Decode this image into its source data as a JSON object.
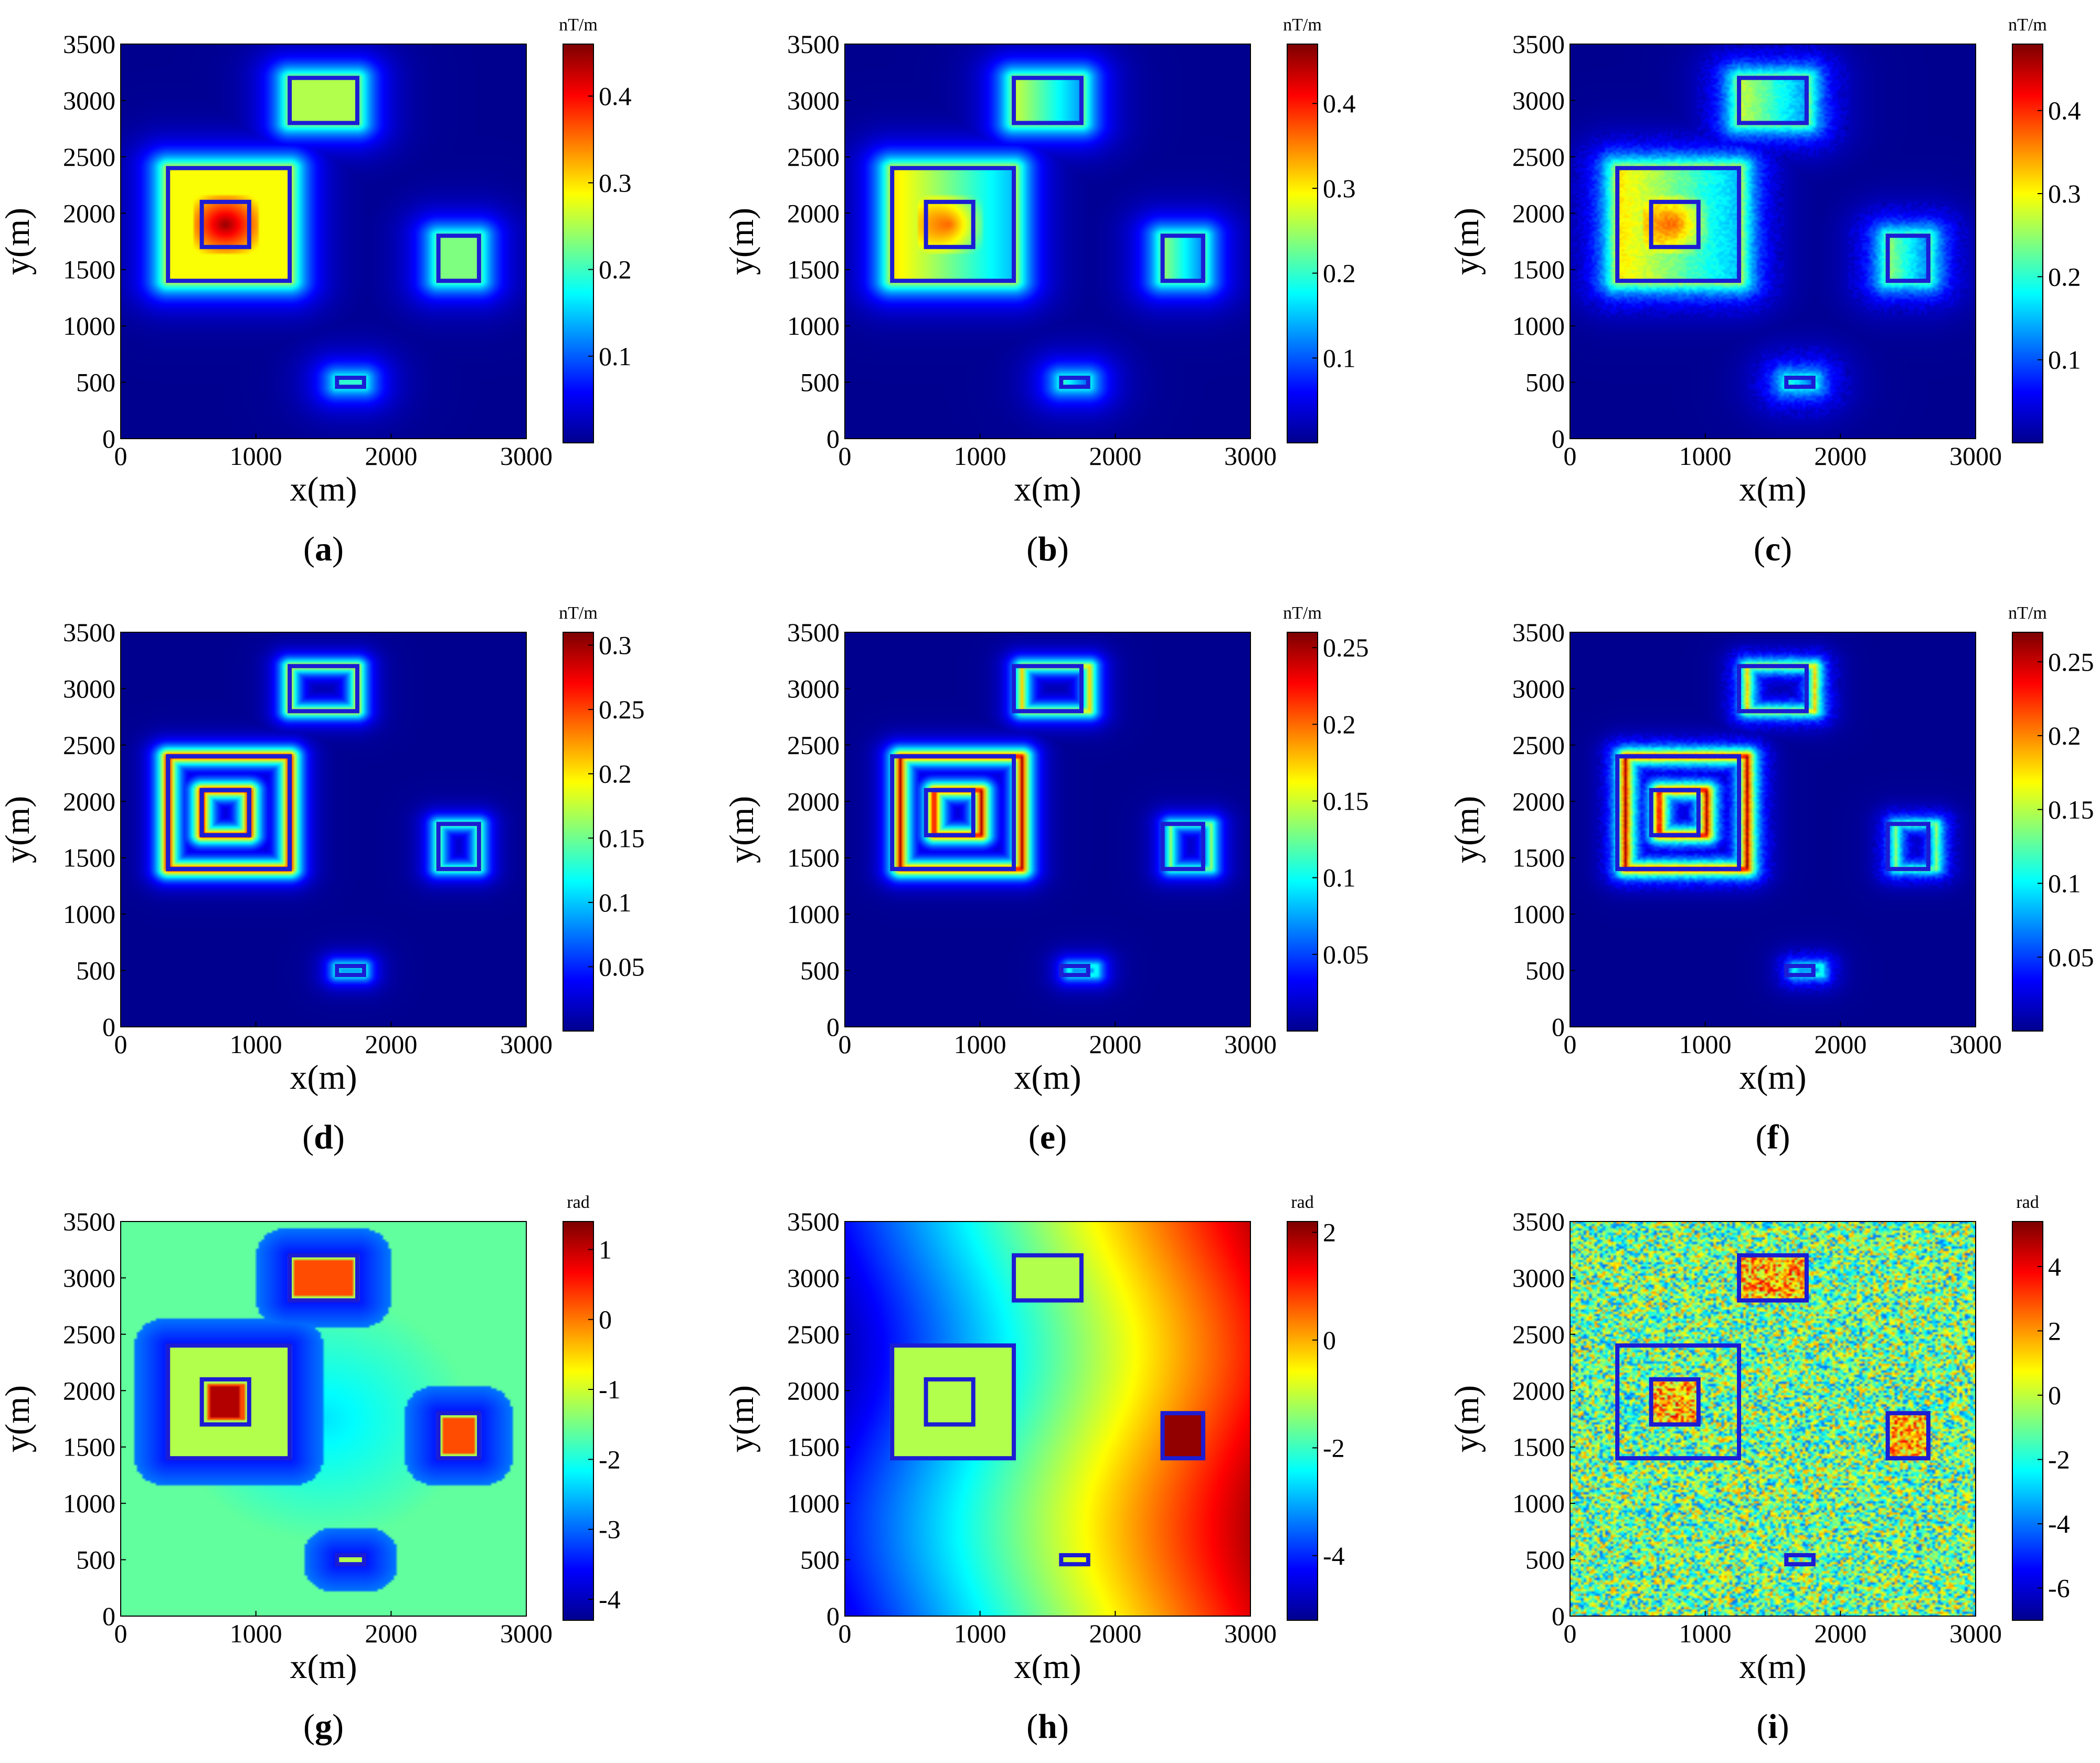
{
  "colors": {
    "cmap": [
      "#00008f",
      "#0000ff",
      "#007fff",
      "#00ffff",
      "#7fff7f",
      "#ffff00",
      "#ff7f00",
      "#ff0000",
      "#7f0000"
    ],
    "rect_stroke": "#1c1cd4"
  },
  "axes": {
    "xlabel": "x(m)",
    "ylabel": "y(m)",
    "xticks": [
      "0",
      "1000",
      "2000",
      "3000"
    ],
    "yticks": [
      "0",
      "500",
      "1000",
      "1500",
      "2000",
      "2500",
      "3000",
      "3500"
    ]
  },
  "chart_data": [
    {
      "type": "heatmap",
      "panel": "a",
      "label": "a",
      "unit": "nT/m",
      "field": "a",
      "xlim": [
        0,
        3000
      ],
      "ylim": [
        0,
        3500
      ],
      "clim": [
        0,
        0.46
      ],
      "cticks": [
        "0.1",
        "0.2",
        "0.3",
        "0.4"
      ],
      "ctick_values": [
        0.1,
        0.2,
        0.3,
        0.4
      ]
    },
    {
      "type": "heatmap",
      "panel": "b",
      "label": "b",
      "unit": "nT/m",
      "field": "b",
      "xlim": [
        0,
        3000
      ],
      "ylim": [
        0,
        3500
      ],
      "clim": [
        0,
        0.47
      ],
      "cticks": [
        "0.1",
        "0.2",
        "0.3",
        "0.4"
      ],
      "ctick_values": [
        0.1,
        0.2,
        0.3,
        0.4
      ]
    },
    {
      "type": "heatmap",
      "panel": "c",
      "label": "c",
      "unit": "nT/m",
      "field": "b",
      "xlim": [
        0,
        3000
      ],
      "ylim": [
        0,
        3500
      ],
      "clim": [
        0,
        0.48
      ],
      "cticks": [
        "0.1",
        "0.2",
        "0.3",
        "0.4"
      ],
      "ctick_values": [
        0.1,
        0.2,
        0.3,
        0.4
      ]
    },
    {
      "type": "heatmap",
      "panel": "d",
      "label": "d",
      "unit": "nT/m",
      "field": "d",
      "xlim": [
        0,
        3000
      ],
      "ylim": [
        0,
        3500
      ],
      "clim": [
        0,
        0.31
      ],
      "cticks": [
        "0.05",
        "0.1",
        "0.15",
        "0.2",
        "0.25",
        "0.3"
      ],
      "ctick_values": [
        0.05,
        0.1,
        0.15,
        0.2,
        0.25,
        0.3
      ]
    },
    {
      "type": "heatmap",
      "panel": "e",
      "label": "e",
      "unit": "nT/m",
      "field": "e",
      "xlim": [
        0,
        3000
      ],
      "ylim": [
        0,
        3500
      ],
      "clim": [
        0,
        0.26
      ],
      "cticks": [
        "0.05",
        "0.1",
        "0.15",
        "0.2",
        "0.25"
      ],
      "ctick_values": [
        0.05,
        0.1,
        0.15,
        0.2,
        0.25
      ]
    },
    {
      "type": "heatmap",
      "panel": "f",
      "label": "f",
      "unit": "nT/m",
      "field": "e",
      "xlim": [
        0,
        3000
      ],
      "ylim": [
        0,
        3500
      ],
      "clim": [
        0,
        0.27
      ],
      "cticks": [
        "0.05",
        "0.1",
        "0.15",
        "0.2",
        "0.25"
      ],
      "ctick_values": [
        0.05,
        0.1,
        0.15,
        0.2,
        0.25
      ]
    },
    {
      "type": "heatmap",
      "panel": "g",
      "label": "g",
      "unit": "rad",
      "field": "g",
      "xlim": [
        0,
        3000
      ],
      "ylim": [
        0,
        3500
      ],
      "clim": [
        -4.3,
        1.4
      ],
      "cticks": [
        "-4",
        "-3",
        "-2",
        "-1",
        "0",
        "1"
      ],
      "ctick_values": [
        -4,
        -3,
        -2,
        -1,
        0,
        1
      ]
    },
    {
      "type": "heatmap",
      "panel": "h",
      "label": "h",
      "unit": "rad",
      "field": "h",
      "xlim": [
        0,
        3000
      ],
      "ylim": [
        0,
        3500
      ],
      "clim": [
        -5.2,
        2.2
      ],
      "cticks": [
        "-4",
        "-2",
        "0",
        "2"
      ],
      "ctick_values": [
        -4,
        -2,
        0,
        2
      ]
    },
    {
      "type": "heatmap",
      "panel": "i",
      "label": "i",
      "unit": "rad",
      "field": "i",
      "xlim": [
        0,
        3000
      ],
      "ylim": [
        0,
        3500
      ],
      "clim": [
        -7,
        5.4
      ],
      "cticks": [
        "-6",
        "-4",
        "-2",
        "0",
        "2",
        "4"
      ],
      "ctick_values": [
        -6,
        -4,
        -2,
        0,
        2,
        4
      ]
    }
  ],
  "sources": [
    {
      "name": "large-body",
      "x0": 350,
      "x1": 1250,
      "y0": 1400,
      "y1": 2400
    },
    {
      "name": "inner-body",
      "x0": 600,
      "x1": 950,
      "y0": 1700,
      "y1": 2100
    },
    {
      "name": "top-body",
      "x0": 1250,
      "x1": 1750,
      "y0": 2800,
      "y1": 3200
    },
    {
      "name": "right-body",
      "x0": 2350,
      "x1": 2650,
      "y0": 1400,
      "y1": 1800
    },
    {
      "name": "small-body",
      "x0": 1600,
      "x1": 1800,
      "y0": 460,
      "y1": 540
    }
  ]
}
